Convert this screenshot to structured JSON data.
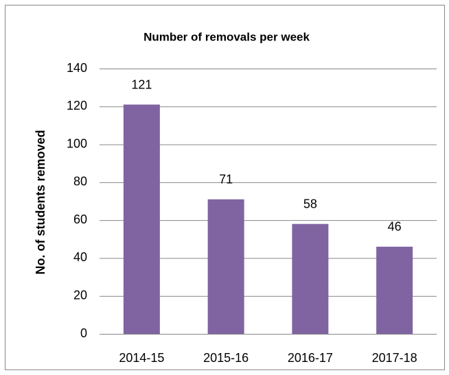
{
  "chart_data": {
    "type": "bar",
    "title": "Number of removals per week",
    "y_label": "No. of students removed",
    "categories": [
      "2014-15",
      "2015-16",
      "2016-17",
      "2017-18"
    ],
    "values": [
      121,
      71,
      58,
      46
    ],
    "color": "#8064a2",
    "ylim": [
      0,
      140
    ],
    "yticks": [
      0,
      20,
      40,
      60,
      80,
      100,
      120,
      140
    ],
    "grid": true
  }
}
